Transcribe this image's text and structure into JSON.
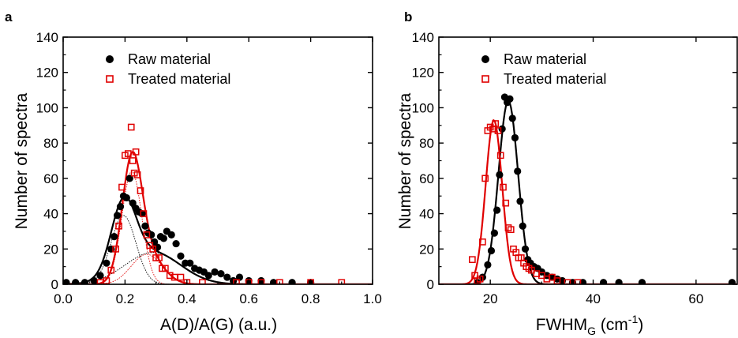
{
  "chart_data": [
    {
      "type": "scatter",
      "panel_label": "a",
      "xlabel": "A(D)/A(G) (a.u.)",
      "ylabel": "Number of spectra",
      "xlim": [
        0.0,
        1.0
      ],
      "ylim": [
        0,
        140
      ],
      "xticks": [
        0.0,
        0.2,
        0.4,
        0.6,
        0.8,
        1.0
      ],
      "xtick_labels": [
        "0.0",
        "0.2",
        "0.4",
        "0.6",
        "0.8",
        "1.0"
      ],
      "yticks": [
        0,
        20,
        40,
        60,
        80,
        100,
        120,
        140
      ],
      "ytick_labels": [
        "0",
        "20",
        "40",
        "60",
        "80",
        "100",
        "120",
        "140"
      ],
      "grid": false,
      "legend_position": "top-left",
      "series": [
        {
          "name": "Raw material",
          "marker": "filled-circle",
          "color": "#000000",
          "points": [
            [
              0.01,
              1
            ],
            [
              0.04,
              1
            ],
            [
              0.07,
              1
            ],
            [
              0.1,
              2
            ],
            [
              0.12,
              5
            ],
            [
              0.14,
              12
            ],
            [
              0.155,
              20
            ],
            [
              0.165,
              27
            ],
            [
              0.175,
              39
            ],
            [
              0.185,
              44
            ],
            [
              0.195,
              50
            ],
            [
              0.205,
              49
            ],
            [
              0.215,
              60
            ],
            [
              0.225,
              46
            ],
            [
              0.235,
              43
            ],
            [
              0.245,
              41
            ],
            [
              0.255,
              40
            ],
            [
              0.265,
              33
            ],
            [
              0.275,
              29
            ],
            [
              0.285,
              28
            ],
            [
              0.295,
              24
            ],
            [
              0.305,
              21
            ],
            [
              0.315,
              27
            ],
            [
              0.325,
              26
            ],
            [
              0.335,
              30
            ],
            [
              0.35,
              28
            ],
            [
              0.365,
              23
            ],
            [
              0.38,
              16
            ],
            [
              0.395,
              12
            ],
            [
              0.41,
              12
            ],
            [
              0.425,
              9
            ],
            [
              0.44,
              8
            ],
            [
              0.455,
              7
            ],
            [
              0.47,
              5
            ],
            [
              0.49,
              7
            ],
            [
              0.51,
              6
            ],
            [
              0.53,
              4
            ],
            [
              0.55,
              2
            ],
            [
              0.57,
              4
            ],
            [
              0.6,
              2
            ],
            [
              0.64,
              2
            ],
            [
              0.68,
              1
            ],
            [
              0.74,
              1
            ],
            [
              0.8,
              1
            ]
          ],
          "fit": {
            "type": "sum of 2 gaussians",
            "color": "#000000",
            "components": [
              {
                "amplitude": 39,
                "center": 0.195,
                "sigma": 0.04
              },
              {
                "amplitude": 18,
                "center": 0.29,
                "sigma": 0.09
              }
            ]
          }
        },
        {
          "name": "Treated material",
          "marker": "open-square",
          "color": "#e00000",
          "points": [
            [
              0.12,
              1
            ],
            [
              0.14,
              2
            ],
            [
              0.155,
              8
            ],
            [
              0.17,
              20
            ],
            [
              0.18,
              33
            ],
            [
              0.19,
              55
            ],
            [
              0.2,
              73
            ],
            [
              0.21,
              74
            ],
            [
              0.22,
              89
            ],
            [
              0.225,
              70
            ],
            [
              0.23,
              63
            ],
            [
              0.235,
              75
            ],
            [
              0.24,
              62
            ],
            [
              0.25,
              53
            ],
            [
              0.26,
              40
            ],
            [
              0.27,
              28
            ],
            [
              0.28,
              22
            ],
            [
              0.29,
              20
            ],
            [
              0.3,
              15
            ],
            [
              0.31,
              15
            ],
            [
              0.32,
              9
            ],
            [
              0.33,
              9
            ],
            [
              0.345,
              5
            ],
            [
              0.36,
              4
            ],
            [
              0.38,
              4
            ],
            [
              0.4,
              1
            ],
            [
              0.45,
              1
            ],
            [
              0.56,
              1
            ],
            [
              0.6,
              1
            ],
            [
              0.64,
              1
            ],
            [
              0.7,
              1
            ],
            [
              0.8,
              1
            ],
            [
              0.9,
              1
            ]
          ],
          "fit": {
            "type": "sum of 2 gaussians",
            "color": "#e00000",
            "components": [
              {
                "amplitude": 64,
                "center": 0.222,
                "sigma": 0.032
              },
              {
                "amplitude": 17,
                "center": 0.27,
                "sigma": 0.05
              }
            ]
          }
        }
      ]
    },
    {
      "type": "scatter",
      "panel_label": "b",
      "xlabel": "FWHM",
      "xlabel_subscript": "G",
      "xlabel_unit_prefix": " (cm",
      "xlabel_unit_superscript": "-1",
      "xlabel_unit_suffix": ")",
      "ylabel": "Number of spectra",
      "xlim": [
        10,
        68
      ],
      "ylim": [
        0,
        140
      ],
      "xticks": [
        20,
        40,
        60
      ],
      "xtick_labels": [
        "20",
        "40",
        "60"
      ],
      "yticks": [
        0,
        20,
        40,
        60,
        80,
        100,
        120,
        140
      ],
      "ytick_labels": [
        "0",
        "20",
        "40",
        "60",
        "80",
        "100",
        "120",
        "140"
      ],
      "grid": false,
      "legend_position": "top-left",
      "series": [
        {
          "name": "Raw material",
          "marker": "filled-circle",
          "color": "#000000",
          "points": [
            [
              17.5,
              1
            ],
            [
              18.5,
              4
            ],
            [
              19.5,
              11
            ],
            [
              20.2,
              19
            ],
            [
              20.8,
              29
            ],
            [
              21.3,
              42
            ],
            [
              21.8,
              62
            ],
            [
              22.3,
              88
            ],
            [
              22.8,
              106
            ],
            [
              23.3,
              103
            ],
            [
              23.8,
              105
            ],
            [
              24.3,
              94
            ],
            [
              24.8,
              83
            ],
            [
              25.3,
              64
            ],
            [
              25.8,
              47
            ],
            [
              26.3,
              33
            ],
            [
              26.8,
              20
            ],
            [
              27.3,
              14
            ],
            [
              27.8,
              12
            ],
            [
              28.5,
              10
            ],
            [
              29.2,
              9
            ],
            [
              30,
              7
            ],
            [
              31,
              5
            ],
            [
              32,
              4
            ],
            [
              33,
              3
            ],
            [
              34,
              2
            ],
            [
              36,
              1
            ],
            [
              38,
              1
            ],
            [
              42,
              1
            ],
            [
              45,
              1
            ],
            [
              49.5,
              1
            ],
            [
              67,
              1
            ]
          ],
          "fit": {
            "type": "gaussian",
            "color": "#000000",
            "amplitude": 104,
            "center": 23.5,
            "sigma": 1.9
          }
        },
        {
          "name": "Treated material",
          "marker": "open-square",
          "color": "#e00000",
          "points": [
            [
              16.5,
              14
            ],
            [
              17,
              5
            ],
            [
              17.5,
              2
            ],
            [
              18,
              3
            ],
            [
              18.5,
              24
            ],
            [
              19,
              60
            ],
            [
              19.5,
              87
            ],
            [
              20,
              89
            ],
            [
              20.5,
              88
            ],
            [
              21,
              91
            ],
            [
              21.5,
              87
            ],
            [
              22,
              73
            ],
            [
              22.5,
              55
            ],
            [
              23,
              46
            ],
            [
              23.5,
              32
            ],
            [
              24,
              31
            ],
            [
              24.5,
              20
            ],
            [
              25,
              18
            ],
            [
              25.5,
              15
            ],
            [
              26,
              15
            ],
            [
              26.5,
              12
            ],
            [
              27,
              10
            ],
            [
              27.5,
              9
            ],
            [
              28,
              8
            ],
            [
              29,
              6
            ],
            [
              30,
              5
            ],
            [
              31,
              3
            ],
            [
              32,
              4
            ],
            [
              33,
              2
            ],
            [
              35,
              1
            ],
            [
              37,
              1
            ]
          ],
          "fit": {
            "type": "gaussian",
            "color": "#e00000",
            "amplitude": 93,
            "center": 20.7,
            "sigma": 1.6
          }
        }
      ]
    }
  ]
}
